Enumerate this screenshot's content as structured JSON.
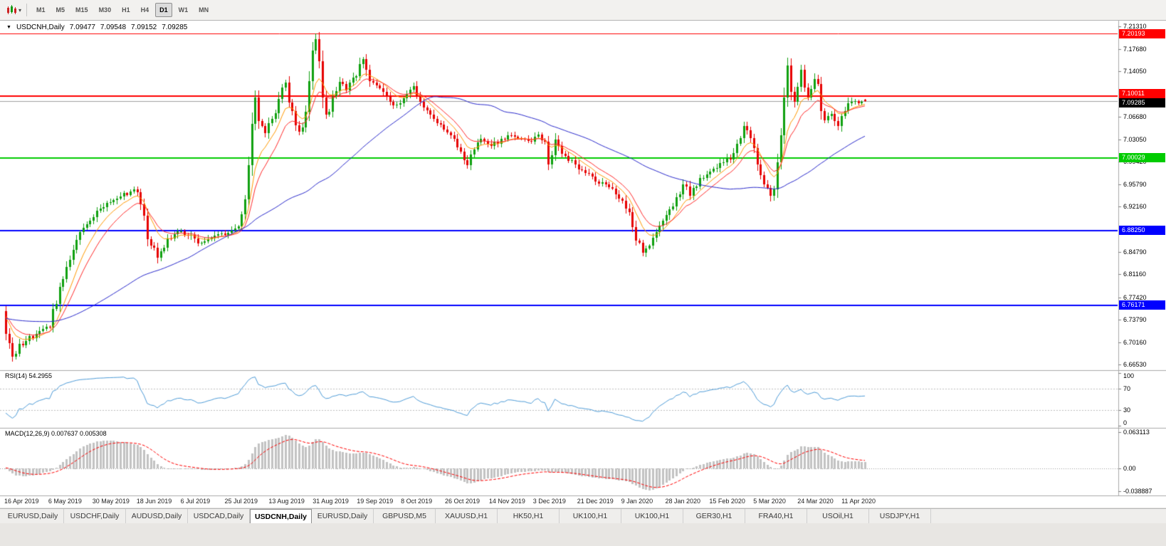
{
  "icons": {
    "collapse_glyph": "▼",
    "caret_glyph": "▾"
  },
  "toolbar": {
    "timeframes": [
      {
        "label": "M1",
        "active": false
      },
      {
        "label": "M5",
        "active": false
      },
      {
        "label": "M15",
        "active": false
      },
      {
        "label": "M30",
        "active": false
      },
      {
        "label": "H1",
        "active": false
      },
      {
        "label": "H4",
        "active": false
      },
      {
        "label": "D1",
        "active": true
      },
      {
        "label": "W1",
        "active": false
      },
      {
        "label": "MN",
        "active": false
      }
    ]
  },
  "chart": {
    "symbol_period": "USDCNH,Daily",
    "ohlc": {
      "open": "7.09477",
      "high": "7.09548",
      "low": "7.09152",
      "close": "7.09285"
    }
  },
  "chart_data": {
    "type": "candlestick",
    "symbol": "USDCNH",
    "period": "Daily",
    "colors": {
      "up": "#0FA00F",
      "down": "#E60000",
      "background": "#FFFFFF"
    },
    "y_axis": {
      "range": [
        6.6575,
        7.2181
      ],
      "ticks": [
        "7.21310",
        "7.17680",
        "7.14050",
        "7.06680",
        "7.03050",
        "6.99420",
        "6.95790",
        "6.92160",
        "6.84790",
        "6.81160",
        "6.77420",
        "6.73790",
        "6.70160",
        "6.66530"
      ]
    },
    "x_axis": {
      "labels": [
        "16 Apr 2019",
        "6 May 2019",
        "30 May 2019",
        "18 Jun 2019",
        "6 Jul 2019",
        "25 Jul 2019",
        "13 Aug 2019",
        "31 Aug 2019",
        "19 Sep 2019",
        "8 Oct 2019",
        "26 Oct 2019",
        "14 Nov 2019",
        "3 Dec 2019",
        "21 Dec 2019",
        "9 Jan 2020",
        "28 Jan 2020",
        "15 Feb 2020",
        "5 Mar 2020",
        "24 Mar 2020",
        "11 Apr 2020"
      ]
    },
    "levels": [
      {
        "label": "7.20193",
        "price": 7.20193,
        "color": "#FF0000",
        "width": 1
      },
      {
        "label": "7.10011",
        "price": 7.10011,
        "color": "#FF0000",
        "width": 2
      },
      {
        "label": "7.09285",
        "price": 7.09285,
        "color": "#A0A0A0",
        "width": 1,
        "badge": "#000000"
      },
      {
        "label": "7.00029",
        "price": 7.00029,
        "color": "#00CC00",
        "width": 2
      },
      {
        "label": "6.88250",
        "price": 6.8825,
        "color": "#0000FF",
        "width": 2
      },
      {
        "label": "6.76171",
        "price": 6.76171,
        "color": "#0000FF",
        "width": 2
      }
    ],
    "moving_averages": [
      {
        "type": "ema",
        "period": 8,
        "color": "#FF9900"
      },
      {
        "type": "ema",
        "period": 13,
        "color": "#FF2A2A"
      },
      {
        "type": "sma",
        "period": 55,
        "color": "#2A2ACC"
      }
    ],
    "rsi": {
      "label": "RSI(14) 54.2955",
      "period": 14,
      "current": 54.2955,
      "color": "#4E9CD8",
      "levels": [
        70,
        30
      ],
      "scale": [
        "100",
        "70",
        "30",
        "0"
      ]
    },
    "macd": {
      "label": "MACD(12,26,9) 0.007637 0.005308",
      "params": [
        12,
        26,
        9
      ],
      "current_macd": 0.007637,
      "current_signal": 0.005308,
      "histogram_color": "#C2C2C2",
      "signal_color": "#FF0000",
      "scale": [
        "0.063113",
        "0.00",
        "-0.038887"
      ],
      "range": [
        -0.038887,
        0.063113
      ]
    },
    "candles": {
      "count": 256,
      "close_anchors": [
        [
          0,
          6.712
        ],
        [
          2,
          6.676
        ],
        [
          4,
          6.695
        ],
        [
          7,
          6.708
        ],
        [
          10,
          6.718
        ],
        [
          13,
          6.732
        ],
        [
          15,
          6.768
        ],
        [
          18,
          6.828
        ],
        [
          22,
          6.878
        ],
        [
          26,
          6.908
        ],
        [
          30,
          6.925
        ],
        [
          34,
          6.938
        ],
        [
          38,
          6.948
        ],
        [
          40,
          6.932
        ],
        [
          42,
          6.872
        ],
        [
          45,
          6.842
        ],
        [
          48,
          6.868
        ],
        [
          51,
          6.882
        ],
        [
          54,
          6.876
        ],
        [
          58,
          6.862
        ],
        [
          62,
          6.874
        ],
        [
          66,
          6.878
        ],
        [
          69,
          6.885
        ],
        [
          71,
          6.925
        ],
        [
          72,
          6.985
        ],
        [
          73,
          7.048
        ],
        [
          74,
          7.095
        ],
        [
          75,
          7.065
        ],
        [
          77,
          7.042
        ],
        [
          79,
          7.062
        ],
        [
          81,
          7.098
        ],
        [
          83,
          7.122
        ],
        [
          85,
          7.07
        ],
        [
          87,
          7.035
        ],
        [
          89,
          7.08
        ],
        [
          90,
          7.13
        ],
        [
          91,
          7.178
        ],
        [
          92,
          7.192
        ],
        [
          93,
          7.155
        ],
        [
          94,
          7.105
        ],
        [
          95,
          7.068
        ],
        [
          97,
          7.092
        ],
        [
          99,
          7.128
        ],
        [
          101,
          7.112
        ],
        [
          103,
          7.125
        ],
        [
          105,
          7.148
        ],
        [
          106,
          7.158
        ],
        [
          108,
          7.125
        ],
        [
          110,
          7.115
        ],
        [
          113,
          7.1
        ],
        [
          116,
          7.082
        ],
        [
          119,
          7.102
        ],
        [
          121,
          7.112
        ],
        [
          124,
          7.085
        ],
        [
          127,
          7.065
        ],
        [
          130,
          7.048
        ],
        [
          133,
          7.028
        ],
        [
          135,
          7.008
        ],
        [
          137,
          6.992
        ],
        [
          139,
          7.018
        ],
        [
          141,
          7.032
        ],
        [
          144,
          7.022
        ],
        [
          147,
          7.028
        ],
        [
          150,
          7.038
        ],
        [
          153,
          7.032
        ],
        [
          156,
          7.028
        ],
        [
          158,
          7.035
        ],
        [
          160,
          7.025
        ],
        [
          161,
          6.992
        ],
        [
          163,
          7.028
        ],
        [
          166,
          7.002
        ],
        [
          169,
          6.988
        ],
        [
          172,
          6.978
        ],
        [
          175,
          6.962
        ],
        [
          178,
          6.958
        ],
        [
          181,
          6.945
        ],
        [
          183,
          6.932
        ],
        [
          185,
          6.905
        ],
        [
          187,
          6.868
        ],
        [
          189,
          6.846
        ],
        [
          191,
          6.862
        ],
        [
          193,
          6.885
        ],
        [
          196,
          6.912
        ],
        [
          199,
          6.932
        ],
        [
          201,
          6.958
        ],
        [
          203,
          6.942
        ],
        [
          206,
          6.965
        ],
        [
          209,
          6.978
        ],
        [
          212,
          6.992
        ],
        [
          215,
          7.002
        ],
        [
          217,
          7.022
        ],
        [
          219,
          7.048
        ],
        [
          221,
          7.032
        ],
        [
          223,
          6.995
        ],
        [
          225,
          6.962
        ],
        [
          227,
          6.935
        ],
        [
          228,
          6.952
        ],
        [
          229,
          6.985
        ],
        [
          230,
          7.035
        ],
        [
          231,
          7.095
        ],
        [
          232,
          7.155
        ],
        [
          233,
          7.112
        ],
        [
          234,
          7.085
        ],
        [
          235,
          7.122
        ],
        [
          236,
          7.142
        ],
        [
          237,
          7.118
        ],
        [
          238,
          7.095
        ],
        [
          239,
          7.118
        ],
        [
          240,
          7.135
        ],
        [
          241,
          7.112
        ],
        [
          242,
          7.082
        ],
        [
          243,
          7.062
        ],
        [
          245,
          7.072
        ],
        [
          247,
          7.055
        ],
        [
          249,
          7.078
        ],
        [
          251,
          7.092
        ],
        [
          253,
          7.088
        ],
        [
          255,
          7.09285
        ]
      ]
    }
  },
  "tabbar": {
    "tabs": [
      {
        "label": "EURUSD,Daily",
        "active": false
      },
      {
        "label": "USDCHF,Daily",
        "active": false
      },
      {
        "label": "AUDUSD,Daily",
        "active": false
      },
      {
        "label": "USDCAD,Daily",
        "active": false
      },
      {
        "label": "USDCNH,Daily",
        "active": true
      },
      {
        "label": "EURUSD,Daily",
        "active": false
      },
      {
        "label": "GBPUSD,M5",
        "active": false
      },
      {
        "label": "XAUUSD,H1",
        "active": false
      },
      {
        "label": "HK50,H1",
        "active": false
      },
      {
        "label": "UK100,H1",
        "active": false
      },
      {
        "label": "UK100,H1",
        "active": false
      },
      {
        "label": "GER30,H1",
        "active": false
      },
      {
        "label": "FRA40,H1",
        "active": false
      },
      {
        "label": "USOil,H1",
        "active": false
      },
      {
        "label": "USDJPY,H1",
        "active": false
      }
    ]
  }
}
